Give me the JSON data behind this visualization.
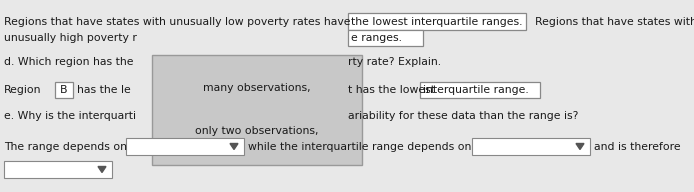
{
  "bg_color": "#e8e8e8",
  "line1_left": "Regions that have states with unusually low poverty rates have",
  "line1_box": "the lowest interquartile ranges.",
  "line1_right": "  Regions that have states with",
  "line2_left": "unusually high poverty r",
  "line2_box": "e ranges.",
  "line3_left": "d. Which region has the",
  "line3_right": "rty rate? Explain.",
  "popup_line1": "many observations,",
  "popup_line2": "only two observations,",
  "line4_left": "Region",
  "line4_box_b": "B",
  "line4_mid": "has the le",
  "line4_right": "t has the lowest",
  "line4_box2": "interquartile range.",
  "line5_left": "e. Why is the interquarti",
  "line5_right": "ariability for these data than the range is?",
  "line6_left": "The range depends on",
  "line6_mid": "while the interquartile range depends on",
  "line6_right": "and is therefore",
  "font_size": 7.8,
  "text_color": "#1a1a1a",
  "box_border": "#888888",
  "popup_bg": "#c8c8c8",
  "popup_border": "#999999"
}
